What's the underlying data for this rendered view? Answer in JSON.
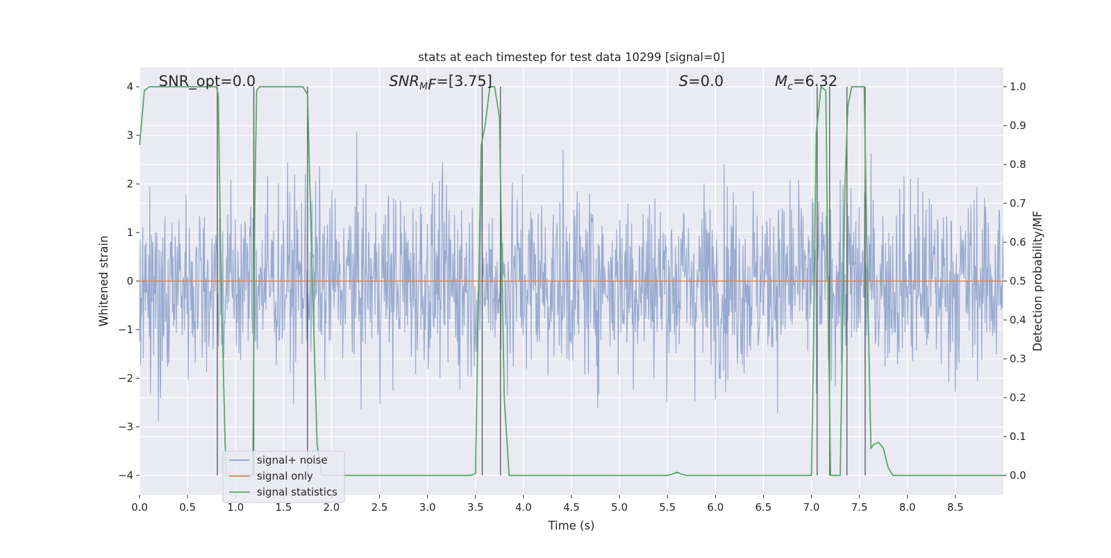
{
  "chart_data": {
    "type": "line",
    "title": "stats at each timestep for test data 10299 [signal=0]",
    "xlabel": "Time (s)",
    "ylabel": "Whitened strain",
    "y2label": "Detection probability/MF",
    "xlim": [
      0.0,
      9.0
    ],
    "ylim": [
      -4.4,
      4.4
    ],
    "y2lim": [
      -0.05,
      1.05
    ],
    "xticks": [
      "0.0",
      "0.5",
      "1.0",
      "1.5",
      "2.0",
      "2.5",
      "3.0",
      "3.5",
      "4.0",
      "4.5",
      "5.0",
      "5.5",
      "6.0",
      "6.5",
      "7.0",
      "7.5",
      "8.0",
      "8.5"
    ],
    "yticks": [
      "4",
      "3",
      "2",
      "1",
      "0",
      "−1",
      "−2",
      "−3",
      "−4"
    ],
    "y2ticks": [
      "0.0",
      "0.1",
      "0.2",
      "0.3",
      "0.4",
      "0.5",
      "0.6",
      "0.7",
      "0.8",
      "0.9",
      "1.0"
    ],
    "grid": true,
    "legend_position": "lower-left",
    "annotations": [
      {
        "id": "snr_opt",
        "text": "SNR_opt=0.0",
        "x": 0.2
      },
      {
        "id": "snr_mf",
        "text": "SNR",
        "sub": "M",
        "after": "F=[3.75]",
        "x": 2.6
      },
      {
        "id": "s",
        "text": "S",
        "after": "=0.0",
        "x": 5.62
      },
      {
        "id": "mc",
        "text": "M",
        "sub": "c",
        "after": "=6.32",
        "x": 6.62
      }
    ],
    "series": [
      {
        "name": "signal+ noise",
        "color": "#8fa3cc",
        "description_values": "noise amplitude roughly within ±3.9 around 0"
      },
      {
        "name": "signal only",
        "color": "#dd8452",
        "values_const": 0.0
      },
      {
        "name": "signal statistics",
        "color": "#55a868",
        "axis": "right",
        "x": [
          0.0,
          0.05,
          0.1,
          0.2,
          0.4,
          0.6,
          0.75,
          0.8,
          0.82,
          0.85,
          0.9,
          1.0,
          1.1,
          1.18,
          1.2,
          1.22,
          1.25,
          1.3,
          1.5,
          1.6,
          1.65,
          1.7,
          1.75,
          1.8,
          1.85,
          1.9,
          1.95,
          2.0,
          2.5,
          3.0,
          3.45,
          3.5,
          3.52,
          3.56,
          3.6,
          3.65,
          3.7,
          3.75,
          3.8,
          3.85,
          3.9,
          4.5,
          5.0,
          5.4,
          5.5,
          5.55,
          5.6,
          5.65,
          5.7,
          6.0,
          6.5,
          7.0,
          7.02,
          7.05,
          7.1,
          7.15,
          7.18,
          7.2,
          7.25,
          7.3,
          7.35,
          7.38,
          7.42,
          7.45,
          7.5,
          7.55,
          7.58,
          7.62,
          7.65,
          7.7,
          7.75,
          7.8,
          7.85,
          7.9,
          8.0,
          8.5,
          9.0
        ],
        "values": [
          0.85,
          0.99,
          1.0,
          1.0,
          1.0,
          1.0,
          1.0,
          1.0,
          0.98,
          0.5,
          0.0,
          0.0,
          0.0,
          0.0,
          0.7,
          0.99,
          1.0,
          1.0,
          1.0,
          1.0,
          1.0,
          1.0,
          0.98,
          0.5,
          0.08,
          0.0,
          0.0,
          0.0,
          0.0,
          0.0,
          0.0,
          0.005,
          0.3,
          0.85,
          0.9,
          1.0,
          1.0,
          0.92,
          0.2,
          0.0,
          0.0,
          0.0,
          0.0,
          0.0,
          0.0,
          0.003,
          0.008,
          0.003,
          0.0,
          0.0,
          0.0,
          0.0,
          0.3,
          0.88,
          1.0,
          0.99,
          0.35,
          0.0,
          0.0,
          0.0,
          0.75,
          0.95,
          1.0,
          1.0,
          1.0,
          1.0,
          0.55,
          0.07,
          0.08,
          0.085,
          0.07,
          0.02,
          0.0,
          0.0,
          0.0,
          0.0,
          0.0
        ]
      }
    ],
    "vertical_markers": [
      0.81,
      1.19,
      1.75,
      3.57,
      3.76,
      7.06,
      7.19,
      7.37,
      7.56
    ]
  }
}
